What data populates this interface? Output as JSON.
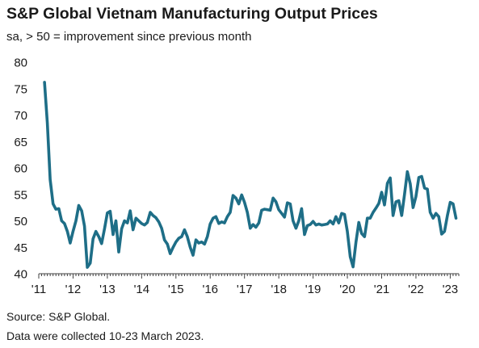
{
  "header": {
    "title": "S&P Global Vietnam Manufacturing Output Prices",
    "subtitle": "sa, > 50 = improvement since previous month"
  },
  "footer": {
    "source": "Source: S&P Global.",
    "note": "Data were collected 10-23 March 2023."
  },
  "colors": {
    "series": "#1e6e87",
    "axis": "#404040",
    "text": "#1a1a1a"
  },
  "chart_data": {
    "type": "line",
    "title": "S&P Global Vietnam Manufacturing Output Prices",
    "subtitle": "sa, > 50 = improvement since previous month",
    "xlabel": "",
    "ylabel": "",
    "ylim": [
      40,
      80
    ],
    "yticks": [
      40,
      45,
      50,
      55,
      60,
      65,
      70,
      75,
      80
    ],
    "xlim": [
      "2011-01",
      "2023-04"
    ],
    "xticks": [
      {
        "date": "2011-01",
        "label": "'11"
      },
      {
        "date": "2012-01",
        "label": "'12"
      },
      {
        "date": "2013-01",
        "label": "'13"
      },
      {
        "date": "2014-01",
        "label": "'14"
      },
      {
        "date": "2015-01",
        "label": "'15"
      },
      {
        "date": "2016-01",
        "label": "'16"
      },
      {
        "date": "2017-01",
        "label": "'17"
      },
      {
        "date": "2018-01",
        "label": "'18"
      },
      {
        "date": "2019-01",
        "label": "'19"
      },
      {
        "date": "2020-01",
        "label": "'20"
      },
      {
        "date": "2021-01",
        "label": "'21"
      },
      {
        "date": "2022-01",
        "label": "'22"
      },
      {
        "date": "2023-01",
        "label": "'23"
      }
    ],
    "grid": false,
    "legend": "none",
    "series": [
      {
        "x": [
          "2011-03",
          "2011-04",
          "2011-05",
          "2011-06",
          "2011-07",
          "2011-08",
          "2011-09",
          "2011-10",
          "2011-11",
          "2011-12",
          "2012-01",
          "2012-02",
          "2012-03",
          "2012-04",
          "2012-05",
          "2012-06",
          "2012-07",
          "2012-08",
          "2012-09",
          "2012-10",
          "2012-11",
          "2012-12",
          "2013-01",
          "2013-02",
          "2013-03",
          "2013-04",
          "2013-05",
          "2013-06",
          "2013-07",
          "2013-08",
          "2013-09",
          "2013-10",
          "2013-11",
          "2013-12",
          "2014-01",
          "2014-02",
          "2014-03",
          "2014-04",
          "2014-05",
          "2014-06",
          "2014-07",
          "2014-08",
          "2014-09",
          "2014-10",
          "2014-11",
          "2014-12",
          "2015-01",
          "2015-02",
          "2015-03",
          "2015-04",
          "2015-05",
          "2015-06",
          "2015-07",
          "2015-08",
          "2015-09",
          "2015-10",
          "2015-11",
          "2015-12",
          "2016-01",
          "2016-02",
          "2016-03",
          "2016-04",
          "2016-05",
          "2016-06",
          "2016-07",
          "2016-08",
          "2016-09",
          "2016-10",
          "2016-11",
          "2016-12",
          "2017-01",
          "2017-02",
          "2017-03",
          "2017-04",
          "2017-05",
          "2017-06",
          "2017-07",
          "2017-08",
          "2017-09",
          "2017-10",
          "2017-11",
          "2017-12",
          "2018-01",
          "2018-02",
          "2018-03",
          "2018-04",
          "2018-05",
          "2018-06",
          "2018-07",
          "2018-08",
          "2018-09",
          "2018-10",
          "2018-11",
          "2018-12",
          "2019-01",
          "2019-02",
          "2019-03",
          "2019-04",
          "2019-05",
          "2019-06",
          "2019-07",
          "2019-08",
          "2019-09",
          "2019-10",
          "2019-11",
          "2019-12",
          "2020-01",
          "2020-02",
          "2020-03",
          "2020-04",
          "2020-05",
          "2020-06",
          "2020-07",
          "2020-08",
          "2020-09",
          "2020-10",
          "2020-11",
          "2020-12",
          "2021-01",
          "2021-02",
          "2021-03",
          "2021-04",
          "2021-05",
          "2021-06",
          "2021-07",
          "2021-08",
          "2021-09",
          "2021-10",
          "2021-11",
          "2021-12",
          "2022-01",
          "2022-02",
          "2022-03",
          "2022-04",
          "2022-05",
          "2022-06",
          "2022-07",
          "2022-08",
          "2022-09",
          "2022-10",
          "2022-11",
          "2022-12",
          "2023-01",
          "2023-02",
          "2023-03"
        ],
        "values": [
          76.2,
          68.5,
          57.8,
          53.2,
          52.2,
          52.3,
          50.0,
          49.5,
          48.0,
          45.8,
          48.0,
          50.0,
          52.9,
          51.9,
          49.0,
          41.2,
          42.0,
          46.6,
          48.0,
          47.0,
          45.7,
          48.5,
          51.5,
          51.8,
          47.4,
          50.0,
          44.1,
          48.5,
          50.0,
          49.6,
          51.9,
          48.3,
          50.5,
          50.0,
          49.5,
          49.2,
          49.7,
          51.6,
          51.0,
          50.6,
          49.8,
          48.6,
          46.4,
          45.6,
          43.8,
          45.0,
          46.0,
          46.7,
          47.0,
          48.3,
          47.0,
          45.0,
          43.5,
          46.4,
          45.8,
          46.0,
          45.6,
          47.0,
          49.4,
          50.5,
          50.8,
          49.5,
          49.8,
          49.6,
          50.8,
          51.6,
          54.8,
          54.3,
          53.2,
          54.9,
          53.5,
          51.6,
          48.6,
          49.3,
          48.8,
          49.6,
          52.0,
          52.2,
          52.1,
          52.0,
          54.3,
          53.6,
          52.1,
          51.4,
          50.7,
          53.4,
          53.2,
          50.0,
          48.6,
          50.0,
          52.3,
          47.4,
          49.1,
          49.3,
          49.9,
          49.2,
          49.4,
          49.2,
          49.3,
          49.4,
          50.0,
          49.4,
          50.8,
          49.6,
          51.4,
          51.2,
          48.0,
          43.2,
          41.3,
          46.0,
          49.7,
          47.6,
          47.0,
          50.5,
          50.5,
          51.6,
          52.4,
          53.3,
          55.4,
          53.0,
          57.1,
          58.1,
          51.0,
          53.6,
          53.8,
          51.0,
          55.0,
          59.3,
          57.0,
          52.5,
          54.6,
          58.2,
          58.4,
          56.2,
          56.0,
          51.6,
          50.5,
          51.4,
          50.8,
          47.5,
          48.0,
          51.0,
          53.5,
          53.2,
          50.5
        ]
      }
    ]
  }
}
